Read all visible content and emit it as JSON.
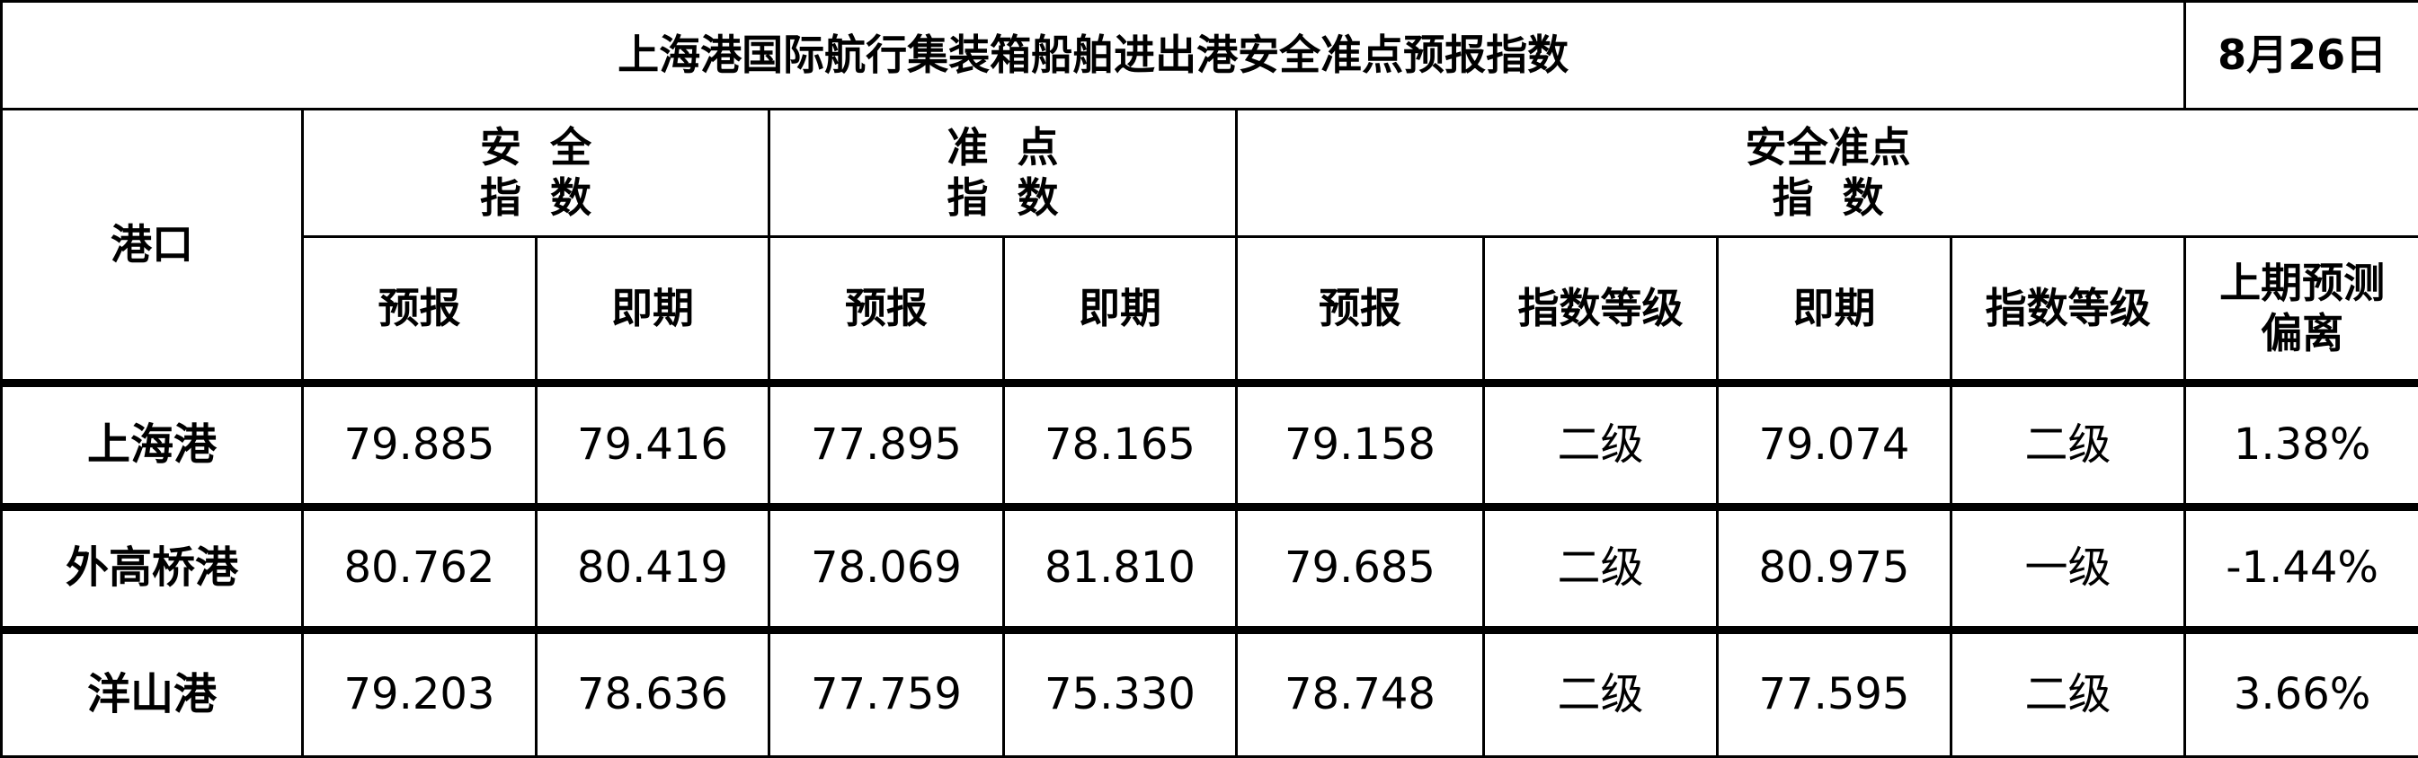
{
  "title": "上海港国际航行集装箱船舶进出港安全准点预报指数",
  "date": "8月26日",
  "headers": {
    "port": "港口",
    "groups": [
      {
        "line1": "安  全",
        "line2": "指  数"
      },
      {
        "line1": "准  点",
        "line2": "指  数"
      },
      {
        "line1": "安全准点",
        "line2": "指  数"
      }
    ],
    "sub": [
      "预报",
      "即期",
      "预报",
      "即期",
      "预报",
      "指数等级",
      "即期",
      "指数等级"
    ],
    "deviation_line1": "上期预测",
    "deviation_line2": "偏离"
  },
  "rows": [
    {
      "port": "上海港",
      "values": [
        "79.885",
        "79.416",
        "77.895",
        "78.165",
        "79.158",
        "二级",
        "79.074",
        "二级",
        "1.38%"
      ]
    },
    {
      "port": "外高桥港",
      "values": [
        "80.762",
        "80.419",
        "78.069",
        "81.810",
        "79.685",
        "二级",
        "80.975",
        "一级",
        "-1.44%"
      ]
    },
    {
      "port": "洋山港",
      "values": [
        "79.203",
        "78.636",
        "77.759",
        "75.330",
        "78.748",
        "二级",
        "77.595",
        "二级",
        "3.66%"
      ]
    }
  ]
}
